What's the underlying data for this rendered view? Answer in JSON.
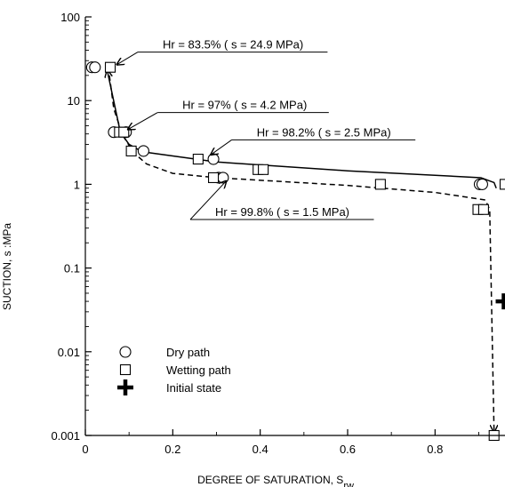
{
  "chart_data": {
    "type": "scatter",
    "xlabel": "DEGREE OF SATURATION, S",
    "xlabel_sub": "rw",
    "ylabel": "SUCTION, s :MPa",
    "xlim": [
      0,
      0.96
    ],
    "ylim": [
      0.001,
      100
    ],
    "yscale": "log",
    "x_ticks": [
      {
        "value": 0,
        "label": "0"
      },
      {
        "value": 0.2,
        "label": "0.2"
      },
      {
        "value": 0.4,
        "label": "0.4"
      },
      {
        "value": 0.6,
        "label": "0.6"
      },
      {
        "value": 0.8,
        "label": "0.8"
      }
    ],
    "y_ticks": [
      {
        "value": 100,
        "label": "100"
      },
      {
        "value": 10,
        "label": "10"
      },
      {
        "value": 1,
        "label": "1"
      },
      {
        "value": 0.1,
        "label": "0.1"
      },
      {
        "value": 0.01,
        "label": "0.01"
      },
      {
        "value": 0.001,
        "label": "0.001"
      }
    ],
    "grid": false,
    "legend_position": "bottom-left",
    "series": [
      {
        "name": "Dry path",
        "marker": "circle",
        "points": [
          {
            "x": 0.015,
            "y": 25
          },
          {
            "x": 0.022,
            "y": 25
          },
          {
            "x": 0.065,
            "y": 4.2
          },
          {
            "x": 0.093,
            "y": 4.2
          },
          {
            "x": 0.133,
            "y": 2.5
          },
          {
            "x": 0.293,
            "y": 2.0
          },
          {
            "x": 0.305,
            "y": 1.2
          },
          {
            "x": 0.315,
            "y": 1.2
          },
          {
            "x": 0.902,
            "y": 1.0
          },
          {
            "x": 0.908,
            "y": 1.0
          }
        ]
      },
      {
        "name": "Wetting path",
        "marker": "square",
        "points": [
          {
            "x": 0.057,
            "y": 25
          },
          {
            "x": 0.078,
            "y": 4.2
          },
          {
            "x": 0.088,
            "y": 4.2
          },
          {
            "x": 0.105,
            "y": 2.5
          },
          {
            "x": 0.258,
            "y": 2.0
          },
          {
            "x": 0.293,
            "y": 1.2
          },
          {
            "x": 0.395,
            "y": 1.5
          },
          {
            "x": 0.407,
            "y": 1.5
          },
          {
            "x": 0.675,
            "y": 1.0
          },
          {
            "x": 0.898,
            "y": 0.5
          },
          {
            "x": 0.911,
            "y": 0.5
          },
          {
            "x": 0.96,
            "y": 1.0
          },
          {
            "x": 0.935,
            "y": 0.001
          }
        ]
      },
      {
        "name": "Initial state",
        "marker": "plus",
        "points": [
          {
            "x": 0.957,
            "y": 0.04
          }
        ]
      }
    ],
    "curves": [
      {
        "style": "solid",
        "arrow_end": true,
        "points": [
          {
            "x": 0.94,
            "y": 0.9
          },
          {
            "x": 0.935,
            "y": 1.05
          },
          {
            "x": 0.905,
            "y": 1.2
          },
          {
            "x": 0.6,
            "y": 1.45
          },
          {
            "x": 0.3,
            "y": 1.85
          },
          {
            "x": 0.13,
            "y": 2.45
          },
          {
            "x": 0.1,
            "y": 3.0
          },
          {
            "x": 0.08,
            "y": 4.2
          },
          {
            "x": 0.05,
            "y": 23
          }
        ]
      },
      {
        "style": "dashed",
        "arrow_end": true,
        "points": [
          {
            "x": 0.055,
            "y": 20
          },
          {
            "x": 0.065,
            "y": 8
          },
          {
            "x": 0.085,
            "y": 3.9
          },
          {
            "x": 0.11,
            "y": 2.4
          },
          {
            "x": 0.14,
            "y": 1.75
          },
          {
            "x": 0.2,
            "y": 1.35
          },
          {
            "x": 0.3,
            "y": 1.2
          },
          {
            "x": 0.6,
            "y": 0.97
          },
          {
            "x": 0.8,
            "y": 0.8
          },
          {
            "x": 0.915,
            "y": 0.65
          },
          {
            "x": 0.925,
            "y": 0.5
          },
          {
            "x": 0.935,
            "y": 0.0011
          }
        ]
      }
    ],
    "annotations": [
      {
        "text": "Hr = 83.5% ( s = 24.9 MPa)",
        "x": 0.12,
        "y": 38,
        "point_x": 0.06,
        "point_y": 25
      },
      {
        "text": "Hr = 97% ( s = 4.2 MPa)",
        "x": 0.165,
        "y": 7.2,
        "point_x": 0.085,
        "point_y": 4.2
      },
      {
        "text": "Hr = 98.2% ( s = 2.5 MPa)",
        "x": 0.335,
        "y": 3.4,
        "point_x": 0.275,
        "point_y": 2.1
      },
      {
        "text": "Hr = 99.8% ( s = 1.5 MPa)",
        "x": 0.24,
        "y": 0.38,
        "point_x": 0.31,
        "point_y": 1.15
      }
    ]
  }
}
